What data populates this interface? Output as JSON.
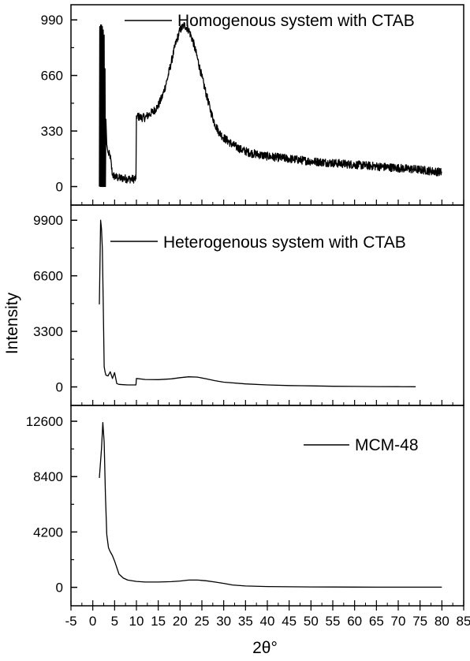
{
  "chart_data": {
    "type": "line",
    "layout": "stacked-panels-shared-x",
    "xlabel": "2θ°",
    "ylabel": "Intensity",
    "xlim": [
      -5,
      85
    ],
    "x_ticks": [
      -5,
      0,
      5,
      10,
      15,
      20,
      25,
      30,
      35,
      40,
      45,
      50,
      55,
      60,
      65,
      70,
      75,
      80,
      85
    ],
    "x_tick_labels": [
      "-5",
      "0",
      "5",
      "10",
      "15",
      "20",
      "25",
      "30",
      "35",
      "40",
      "45",
      "50",
      "55",
      "60",
      "65",
      "70",
      "75",
      "80",
      "85"
    ],
    "line_color": "#000000",
    "grid": false,
    "panels": [
      {
        "legend": "Homogenous system with CTAB",
        "legend_position": "top-right",
        "ylim": [
          -110,
          1080
        ],
        "y_ticks": [
          0,
          330,
          660,
          990
        ],
        "y_tick_labels": [
          "0",
          "330",
          "660",
          "990"
        ],
        "series": {
          "x": [
            1.5,
            1.6,
            1.7,
            1.8,
            1.9,
            2.0,
            2.1,
            2.2,
            2.3,
            2.4,
            2.5,
            2.6,
            2.7,
            2.8,
            2.9,
            3.0,
            3.2,
            3.5,
            4.0,
            4.5,
            5.0,
            6.0,
            7.0,
            8.0,
            9.0,
            9.9,
            10.0,
            11.0,
            12.0,
            13.0,
            14.0,
            15.0,
            16.0,
            17.0,
            18.0,
            19.0,
            20.0,
            21.0,
            22.0,
            23.0,
            24.0,
            25.0,
            26.0,
            27.0,
            28.0,
            29.0,
            30.0,
            32.0,
            34.0,
            36.0,
            38.0,
            40.0,
            45.0,
            50.0,
            55.0,
            60.0,
            65.0,
            70.0,
            75.0,
            80.0
          ],
          "y": [
            0,
            950,
            0,
            960,
            0,
            960,
            0,
            950,
            0,
            930,
            0,
            900,
            0,
            700,
            0,
            400,
            250,
            200,
            180,
            70,
            60,
            50,
            50,
            45,
            45,
            45,
            420,
            410,
            410,
            430,
            450,
            480,
            540,
            630,
            740,
            850,
            930,
            960,
            930,
            860,
            760,
            650,
            550,
            450,
            370,
            320,
            290,
            250,
            220,
            200,
            190,
            180,
            165,
            150,
            140,
            130,
            120,
            110,
            100,
            85
          ],
          "noise_amplitude": 25
        }
      },
      {
        "legend": "Heterogenous system with CTAB",
        "legend_position": "top-right",
        "ylim": [
          -1100,
          10800
        ],
        "y_ticks": [
          0,
          3300,
          6600,
          9900
        ],
        "y_tick_labels": [
          "0",
          "3300",
          "6600",
          "9900"
        ],
        "series": {
          "x": [
            1.5,
            1.8,
            2.0,
            2.2,
            2.4,
            2.6,
            2.8,
            3.0,
            3.5,
            4.0,
            4.5,
            5.0,
            5.5,
            6.0,
            7.0,
            8.0,
            9.0,
            9.9,
            10.0,
            12.0,
            15.0,
            18.0,
            20.0,
            22.0,
            24.0,
            26.0,
            28.0,
            30.0,
            35.0,
            40.0,
            45.0,
            50.0,
            55.0,
            60.0,
            65.0,
            70.0,
            74.0
          ],
          "y": [
            4900,
            9900,
            9400,
            8200,
            5000,
            1200,
            900,
            700,
            650,
            900,
            500,
            850,
            200,
            150,
            130,
            120,
            120,
            120,
            500,
            440,
            430,
            480,
            550,
            600,
            580,
            480,
            370,
            280,
            180,
            120,
            80,
            60,
            40,
            30,
            20,
            15,
            10
          ],
          "noise_amplitude": 0
        }
      },
      {
        "legend": "MCM-48",
        "legend_position": "top-right",
        "ylim": [
          -1400,
          13800
        ],
        "y_ticks": [
          0,
          4200,
          8400,
          12600
        ],
        "y_tick_labels": [
          "0",
          "4200",
          "8400",
          "12600"
        ],
        "series": {
          "x": [
            1.5,
            2.0,
            2.3,
            2.6,
            2.9,
            3.2,
            3.6,
            4.0,
            4.5,
            5.0,
            5.5,
            6.0,
            7.0,
            8.0,
            10.0,
            12.0,
            15.0,
            18.0,
            20.0,
            22.0,
            24.0,
            26.0,
            28.0,
            30.0,
            32.0,
            35.0,
            40.0,
            45.0,
            50.0,
            55.0,
            60.0,
            65.0,
            70.0,
            75.0,
            80.0
          ],
          "y": [
            8300,
            10500,
            12500,
            11000,
            7000,
            4000,
            3000,
            2700,
            2400,
            2000,
            1500,
            1000,
            700,
            550,
            450,
            400,
            400,
            430,
            480,
            550,
            550,
            500,
            400,
            300,
            180,
            100,
            60,
            40,
            30,
            25,
            20,
            15,
            12,
            10,
            10
          ],
          "noise_amplitude": 0
        }
      }
    ]
  }
}
